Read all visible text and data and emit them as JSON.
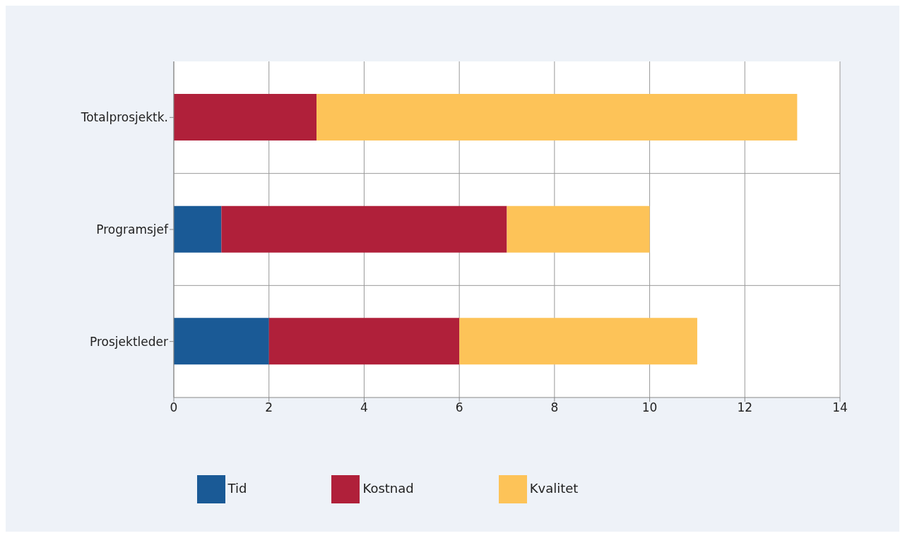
{
  "chart_data": {
    "type": "bar",
    "orientation": "horizontal",
    "stacked": true,
    "categories": [
      "Totalprosjektk.",
      "Programsjef",
      "Prosjektleder"
    ],
    "series": [
      {
        "name": "Tid",
        "color": "#1a5a96",
        "values": [
          0,
          1,
          2
        ]
      },
      {
        "name": "Kostnad",
        "color": "#b0203a",
        "values": [
          3,
          6,
          4
        ]
      },
      {
        "name": "Kvalitet",
        "color": "#fdc358",
        "values": [
          10.1,
          3,
          5
        ]
      }
    ],
    "xlim": [
      0,
      14
    ],
    "xticks": [
      0,
      2,
      4,
      6,
      8,
      10,
      12,
      14
    ],
    "grid": true,
    "legend": "bottom"
  }
}
